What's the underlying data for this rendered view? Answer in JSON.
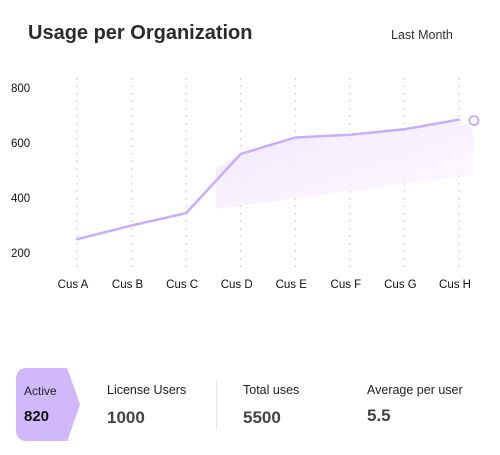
{
  "header": {
    "title": "Usage per Organization",
    "period": "Last Month"
  },
  "chart_data": {
    "type": "line",
    "categories": [
      "Cus A",
      "Cus B",
      "Cus C",
      "Cus D",
      "Cus E",
      "Cus F",
      "Cus G",
      "Cus H"
    ],
    "series": [
      {
        "values": [
          250,
          300,
          345,
          560,
          620,
          630,
          650,
          685
        ]
      }
    ],
    "y_ticks": [
      200,
      400,
      600,
      800
    ],
    "ylim": [
      150,
      850
    ],
    "grid": "vertical dotted",
    "line_color": "#c9aef8",
    "fill_color": "#f3e9fe"
  },
  "summary": {
    "active": {
      "label": "Active",
      "value": "820"
    },
    "stats": [
      {
        "label": "License Users",
        "value": "1000"
      },
      {
        "label": "Total uses",
        "value": "5500"
      },
      {
        "label": "Average per user",
        "value": "5.5"
      }
    ]
  }
}
